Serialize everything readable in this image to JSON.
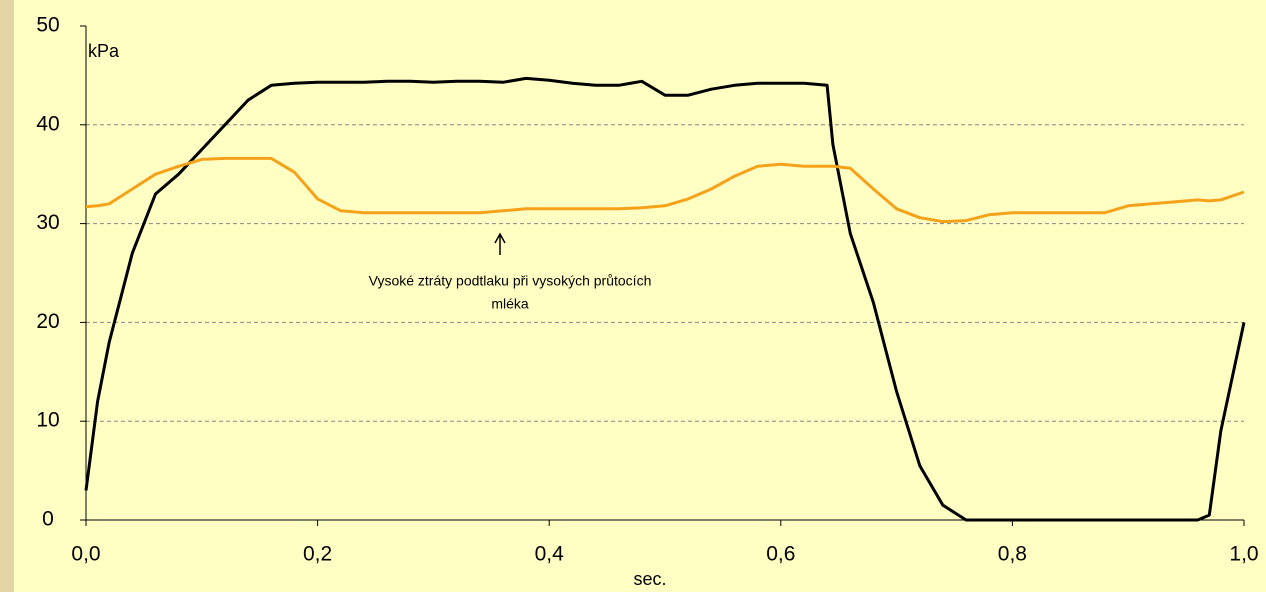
{
  "chart_data": {
    "type": "line",
    "x_label": "sec.",
    "y_label": "kPa",
    "annotation": [
      "Vysoké ztráty podtlaku při vysokých průtocích",
      "mléka"
    ],
    "x": [
      0,
      0.01,
      0.02,
      0.04,
      0.06,
      0.08,
      0.1,
      0.12,
      0.14,
      0.16,
      0.18,
      0.2,
      0.22,
      0.24,
      0.26,
      0.28,
      0.3,
      0.32,
      0.34,
      0.36,
      0.38,
      0.4,
      0.42,
      0.44,
      0.46,
      0.48,
      0.5,
      0.52,
      0.54,
      0.56,
      0.58,
      0.6,
      0.62,
      0.64,
      0.645,
      0.66,
      0.68,
      0.7,
      0.72,
      0.74,
      0.76,
      0.78,
      0.8,
      0.82,
      0.84,
      0.86,
      0.88,
      0.9,
      0.92,
      0.94,
      0.96,
      0.97,
      0.98,
      1.0
    ],
    "series": [
      {
        "color": "#000000",
        "values": [
          3,
          12,
          18,
          27,
          33,
          35,
          37.5,
          40,
          42.5,
          44,
          44.2,
          44.3,
          44.3,
          44.3,
          44.4,
          44.4,
          44.3,
          44.4,
          44.4,
          44.3,
          44.7,
          44.5,
          44.2,
          44,
          44,
          44.4,
          43,
          43,
          43.6,
          44,
          44.2,
          44.2,
          44.2,
          44,
          38,
          29,
          22,
          13,
          5.5,
          1.5,
          0,
          0,
          0,
          0,
          0,
          0,
          0,
          0,
          0,
          0,
          0,
          0.5,
          9,
          20
        ]
      },
      {
        "color": "#f5a21b",
        "values": [
          31.7,
          31.8,
          32,
          33.5,
          35,
          35.8,
          36.5,
          36.6,
          36.6,
          36.6,
          35.2,
          32.5,
          31.3,
          31.1,
          31.1,
          31.1,
          31.1,
          31.1,
          31.1,
          31.3,
          31.5,
          31.5,
          31.5,
          31.5,
          31.5,
          31.6,
          31.8,
          32.5,
          33.5,
          34.8,
          35.8,
          36,
          35.8,
          35.8,
          35.8,
          35.6,
          33.5,
          31.5,
          30.6,
          30.2,
          30.3,
          30.9,
          31.1,
          31.1,
          31.1,
          31.1,
          31.1,
          31.8,
          32,
          32.2,
          32.4,
          32.3,
          32.4,
          33.2
        ]
      }
    ],
    "xlim": [
      0,
      1.0
    ],
    "xticks": [
      {
        "value": 0,
        "label": "0,0"
      },
      {
        "value": 0.2,
        "label": "0,2"
      },
      {
        "value": 0.4,
        "label": "0,4"
      },
      {
        "value": 0.6,
        "label": "0,6"
      },
      {
        "value": 0.8,
        "label": "0,8"
      },
      {
        "value": 1.0,
        "label": "1,0"
      }
    ],
    "ylim": [
      0,
      50
    ],
    "yticks": [
      0,
      10,
      20,
      30,
      40,
      50
    ],
    "grid": true
  }
}
